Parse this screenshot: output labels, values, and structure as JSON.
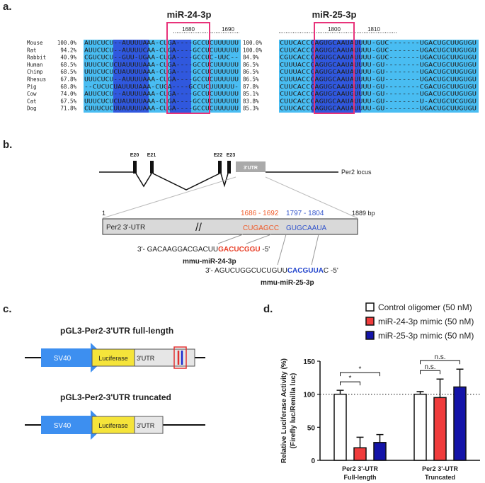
{
  "panel_a": {
    "label": "a.",
    "titles": [
      "miR-24-3p",
      "miR-25-3p"
    ],
    "positions": [
      1680,
      1690,
      1800,
      1810
    ],
    "rows": [
      {
        "species": "Mouse",
        "left_identity": "100.0%",
        "left_seq": "AUUCUCU--AUUUUAAA-CUGA----GCCUCUUUUUU",
        "right_identity": "100.0%",
        "right_seq": "CUUCACCCAGUGCAAUAUUUU-GUC-------UGACUGCUUGUGU"
      },
      {
        "species": "Rat",
        "left_identity": "94.2%",
        "left_seq": "AUUCUCU--AUUUUCAA-CUGA----GCCUCUUUUUU",
        "right_identity": "100.0%",
        "right_seq": "CUUCACCCAGUGCAAUAUUUU-GUC-------UGACUGCUUGUGU"
      },
      {
        "species": "Rabbit",
        "left_identity": "40.9%",
        "left_seq": "CGUCUCU--GUU-UGAA-CUGA----GCCUC-UUC--",
        "right_identity": "84.9%",
        "right_seq": "CGUCACCCAGUGCAAUAUUUU-GUC-------UGACUGCUUGUGU"
      },
      {
        "species": "Human",
        "left_identity": "68.5%",
        "left_seq": "UUUCUCUCUAUUUUAAA-CUGA----GCCUCUUUUUU",
        "right_identity": "86.5%",
        "right_seq": "CUUUACCCAGUGCAAUAUUUU-GU--------UGACUGCUUGUGU"
      },
      {
        "species": "Chimp",
        "left_identity": "68.5%",
        "left_seq": "UUUCUCUCUAUUUUAAA-CUGA----GCCUCUUUUUU",
        "right_identity": "86.5%",
        "right_seq": "CUUUACCCAGUGCAAUAUUUU-GU--------UGACUGCUUGUGU"
      },
      {
        "species": "Rhesus",
        "left_identity": "67.8%",
        "left_seq": "UUUCUCU--AUUUUAAA-CUGA----GCCUCUUUUUU",
        "right_identity": "86.5%",
        "right_seq": "CUUUACCCAGUGCAAUAUUUU-GU--------UGACUGCUUGUGU"
      },
      {
        "species": "Pig",
        "left_identity": "68.8%",
        "left_seq": "--CUCUCUAUUUUAAA-CUGA----GCCUCUUUUUU-",
        "right_identity": "87.8%",
        "right_seq": "CUUCACCCAGUGCAAUAUUUU-GU--------CGACUGCUUGUGU"
      },
      {
        "species": "Cow",
        "left_identity": "74.0%",
        "left_seq": "AUUCUCU--AUUUUAAA-CUGA----GCCUCUUUUUU",
        "right_identity": "85.1%",
        "right_seq": "CUUCACCCAGUGCAAUGUUUU-GU--------UGACUGCUUGUGU"
      },
      {
        "species": "Cat",
        "left_identity": "67.5%",
        "left_seq": "UUUCUCUCUAUUUUAAA-CUGA----GCCUCUUUUUU",
        "right_identity": "83.8%",
        "right_seq": "CUUCACCCAGUGCAAUAUUUU-GU--------U-ACUGCUCGUGU"
      },
      {
        "species": "Dog",
        "left_identity": "71.8%",
        "left_seq": "CUUUCUCUUAUUUUAAA-CUGA----GCCUCUUUUUU",
        "right_identity": "85.3%",
        "right_seq": "CUUCACCCAGUGCAAUAUUUU-GU--------UGACUGCUUGUGU"
      }
    ]
  },
  "panel_b": {
    "label": "b.",
    "exons": [
      "E20",
      "E21",
      "E22",
      "E23"
    ],
    "utr_box": "3'UTR",
    "locus": "Per2 locus",
    "start": "1",
    "end": "1889 bp",
    "utr_label": "Per2 3'-UTR",
    "site_24_range": "1686 - 1692",
    "site_25_range": "1797 - 1804",
    "site_24_seq": "CUGAGCC",
    "site_25_seq": "GUGCAAUA",
    "mir24_prefix": "3'- GACAAGGACGACUU",
    "mir24_seed": "GACUCGGU",
    "mir24_suffix": " -5'",
    "mir24_name": "mmu-miR-24-3p",
    "mir25_prefix": "3'- AGUCUGGCUCUGUU",
    "mir25_seed": "CACGUUA",
    "mir25_suffix": "C -5'",
    "mir25_name": "mmu-miR-25-3p"
  },
  "panel_c": {
    "label": "c.",
    "construct_full": "pGL3-Per2-3'UTR full-length",
    "construct_truncated": "pGL3-Per2-3'UTR truncated",
    "promoter": "SV40",
    "reporter": "Luciferase",
    "utr": "3'UTR"
  },
  "panel_d_label": "d.",
  "chart_data": {
    "type": "bar",
    "ylabel": [
      "Relative Luciferase Activity (%)",
      "(Firefly luc/Renilla luc)"
    ],
    "categories": [
      [
        "Per2 3'-UTR",
        "Full-length"
      ],
      [
        "Per2 3'-UTR",
        "Truncated"
      ]
    ],
    "series": [
      {
        "name": "Control oligomer (50 nM)",
        "color": "#ffffff",
        "values": [
          100,
          100
        ],
        "errors": [
          6,
          4
        ]
      },
      {
        "name": "miR-24-3p mimic (50 nM)",
        "color": "#f03c3c",
        "values": [
          19,
          95
        ],
        "errors": [
          16,
          28
        ]
      },
      {
        "name": "miR-25-3p mimic (50 nM)",
        "color": "#1414a8",
        "values": [
          27,
          111
        ],
        "errors": [
          12,
          27
        ]
      }
    ],
    "ylim": [
      0,
      150
    ],
    "yticks": [
      0,
      50,
      100,
      150
    ],
    "reference_line": 100,
    "significance": [
      {
        "group": 0,
        "from": 0,
        "to": 1,
        "label": "*"
      },
      {
        "group": 0,
        "from": 0,
        "to": 2,
        "label": "*"
      },
      {
        "group": 1,
        "from": 0,
        "to": 1,
        "label": "n.s."
      },
      {
        "group": 1,
        "from": 0,
        "to": 2,
        "label": "n.s."
      }
    ]
  }
}
